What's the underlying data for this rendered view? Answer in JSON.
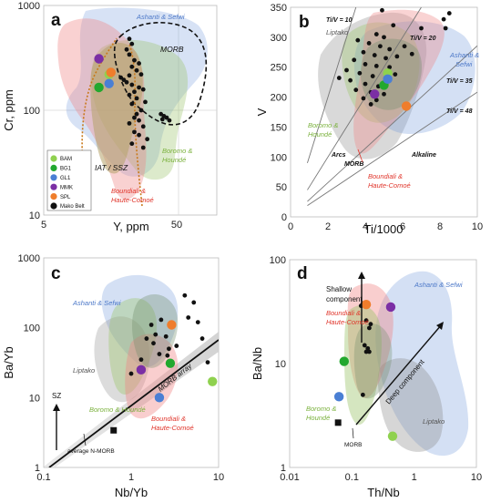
{
  "colors": {
    "BAM": "#8fd14f",
    "BG1": "#22a82e",
    "GL1": "#4a7fd4",
    "MMK": "#7b2fa5",
    "SPL": "#ef7d2c",
    "Mako": "#111111",
    "red": "#e0352b",
    "green": "#7ab13c",
    "blue": "#4c78c8",
    "gray": "#333333",
    "orangeDotted": "#c8781a"
  },
  "chart_data": [
    {
      "panel": "a",
      "type": "scatter",
      "xlabel": "Y, ppm",
      "ylabel": "Cr, ppm",
      "xscale": "log",
      "yscale": "log",
      "xlim": [
        5,
        100
      ],
      "ylim": [
        10,
        1000
      ],
      "xticks": [
        "5",
        "50"
      ],
      "yticks": [
        "10",
        "100",
        "1000"
      ],
      "fields": {
        "ashanti": "Ashanti & Sefwi",
        "morb": "MORB",
        "boromo": "Boromo & Houndé",
        "iat": "IAT / SSZ",
        "boundiali": "Boundiali & Haute-Comoé"
      },
      "legend": [
        "BAM",
        "BG1",
        "GL1",
        "MMK",
        "SPL",
        "Mako Belt"
      ],
      "samples": [
        {
          "g": "BAM",
          "x": 15.5,
          "y": 220
        },
        {
          "g": "BG1",
          "x": 13,
          "y": 165
        },
        {
          "g": "GL1",
          "x": 15.5,
          "y": 180
        },
        {
          "g": "MMK",
          "x": 13,
          "y": 310
        },
        {
          "g": "SPL",
          "x": 16,
          "y": 230
        }
      ],
      "mako": [
        [
          22,
          480
        ],
        [
          23,
          430
        ],
        [
          21,
          380
        ],
        [
          22,
          340
        ],
        [
          24,
          300
        ],
        [
          26,
          280
        ],
        [
          23,
          260
        ],
        [
          25,
          240
        ],
        [
          27,
          220
        ],
        [
          22,
          215
        ],
        [
          19,
          205
        ],
        [
          20,
          195
        ],
        [
          21,
          185
        ],
        [
          23,
          175
        ],
        [
          26,
          165
        ],
        [
          28,
          158
        ],
        [
          24,
          150
        ],
        [
          22,
          140
        ],
        [
          25,
          130
        ],
        [
          29,
          120
        ],
        [
          23,
          115
        ],
        [
          27,
          100
        ],
        [
          25,
          92
        ],
        [
          38,
          92
        ],
        [
          40,
          88
        ],
        [
          42,
          85
        ],
        [
          39,
          82
        ],
        [
          44,
          80
        ],
        [
          24,
          85
        ],
        [
          26,
          80
        ],
        [
          22,
          75
        ],
        [
          28,
          70
        ],
        [
          24,
          62
        ],
        [
          26,
          58
        ],
        [
          30,
          53
        ],
        [
          23,
          48
        ],
        [
          28,
          44
        ]
      ]
    },
    {
      "panel": "b",
      "type": "scatter",
      "xlabel": "Ti/1000",
      "ylabel": "V",
      "xlim": [
        0,
        10
      ],
      "ylim": [
        0,
        350
      ],
      "xticks": [
        "0",
        "2",
        "4",
        "6",
        "8",
        "10"
      ],
      "yticks": [
        "0",
        "50",
        "100",
        "150",
        "200",
        "250",
        "300",
        "350"
      ],
      "ratioLabels": {
        "r10": "Ti/V = 10",
        "r20": "Ti/V = 20",
        "r35": "Ti/V = 35",
        "r48": "Ti/V = 48"
      },
      "fields": {
        "liptako": "Liptako",
        "ashanti": "Ashanti & Sefwi",
        "boromo": "Boromo & Houndé",
        "arcs": "Arcs",
        "morb": "MORB",
        "alkaline": "Alkaline",
        "boundiali": "Boundiali & Haute-Comoé"
      },
      "samples": [
        {
          "g": "BAM",
          "x": 5.2,
          "y": 240
        },
        {
          "g": "BG1",
          "x": 5.0,
          "y": 220
        },
        {
          "g": "GL1",
          "x": 5.2,
          "y": 230
        },
        {
          "g": "MMK",
          "x": 4.5,
          "y": 205
        },
        {
          "g": "SPL",
          "x": 6.2,
          "y": 185
        }
      ],
      "mako": [
        [
          4.9,
          345
        ],
        [
          8.5,
          340
        ],
        [
          8.2,
          330
        ],
        [
          7.0,
          315
        ],
        [
          5.5,
          320
        ],
        [
          4.6,
          305
        ],
        [
          5.0,
          300
        ],
        [
          3.6,
          295
        ],
        [
          4.2,
          290
        ],
        [
          4.8,
          285
        ],
        [
          5.3,
          280
        ],
        [
          6.1,
          285
        ],
        [
          3.9,
          275
        ],
        [
          4.5,
          270
        ],
        [
          5.1,
          265
        ],
        [
          5.7,
          268
        ],
        [
          6.5,
          272
        ],
        [
          3.4,
          262
        ],
        [
          4.0,
          255
        ],
        [
          4.6,
          252
        ],
        [
          5.3,
          250
        ],
        [
          3.0,
          245
        ],
        [
          3.7,
          240
        ],
        [
          4.4,
          235
        ],
        [
          5.6,
          238
        ],
        [
          3.2,
          228
        ],
        [
          4.0,
          222
        ],
        [
          4.7,
          218
        ],
        [
          3.5,
          212
        ],
        [
          4.3,
          208
        ],
        [
          5.0,
          205
        ],
        [
          3.9,
          198
        ],
        [
          4.6,
          195
        ],
        [
          2.6,
          232
        ],
        [
          4.3,
          188
        ],
        [
          8.3,
          315
        ]
      ]
    },
    {
      "panel": "c",
      "type": "scatter",
      "xlabel": "Nb/Yb",
      "ylabel": "Ba/Yb",
      "xscale": "log",
      "yscale": "log",
      "xlim": [
        0.1,
        10
      ],
      "ylim": [
        1,
        1000
      ],
      "xticks": [
        "0.1",
        "1",
        "10"
      ],
      "yticks": [
        "1",
        "10",
        "100",
        "1000"
      ],
      "fields": {
        "ashanti": "Ashanti & Sefwi",
        "liptako": "Liptako",
        "boromo": "Boromo & Houndé",
        "boundiali": "Boundiali & Haute-Comoé",
        "morbArray": "MORB array",
        "sz": "SZ",
        "nmorb": "average N-MORB"
      },
      "samples": [
        {
          "g": "BAM",
          "x": 8.5,
          "y": 17
        },
        {
          "g": "BG1",
          "x": 2.8,
          "y": 31
        },
        {
          "g": "GL1",
          "x": 2.1,
          "y": 10
        },
        {
          "g": "MMK",
          "x": 1.3,
          "y": 25
        },
        {
          "g": "SPL",
          "x": 2.9,
          "y": 110
        }
      ],
      "mako": [
        [
          4.1,
          290
        ],
        [
          5.2,
          230
        ],
        [
          4.5,
          140
        ],
        [
          5.8,
          120
        ],
        [
          2.2,
          130
        ],
        [
          1.7,
          110
        ],
        [
          1.9,
          80
        ],
        [
          1.5,
          70
        ],
        [
          2.5,
          75
        ],
        [
          1.8,
          60
        ],
        [
          2.7,
          50
        ],
        [
          3.3,
          55
        ],
        [
          2.1,
          42
        ],
        [
          1.3,
          35
        ],
        [
          1.0,
          22
        ],
        [
          2.6,
          40
        ],
        [
          6.5,
          70
        ],
        [
          7.5,
          32
        ]
      ],
      "nmorb_point": {
        "x": 0.63,
        "y": 3.4
      }
    },
    {
      "panel": "d",
      "type": "scatter",
      "xlabel": "Th/Nb",
      "ylabel": "Ba/Nb",
      "xscale": "log",
      "yscale": "log",
      "xlim": [
        0.01,
        10
      ],
      "ylim": [
        1,
        100
      ],
      "xticks": [
        "0.01",
        "0.1",
        "1",
        "10"
      ],
      "yticks": [
        "1",
        "10",
        "100"
      ],
      "fields": {
        "ashanti": "Ashanti & Sefwi",
        "boundiali": "Boundiali & Haute-Comoé",
        "boromo": "Boromo & Houndé",
        "liptako": "Liptako",
        "shallow": "Shallow component",
        "deep": "Deep component",
        "morb": "MORB"
      },
      "samples": [
        {
          "g": "BAM",
          "x": 0.45,
          "y": 2.0
        },
        {
          "g": "BG1",
          "x": 0.075,
          "y": 10.5
        },
        {
          "g": "GL1",
          "x": 0.062,
          "y": 4.8
        },
        {
          "g": "MMK",
          "x": 0.42,
          "y": 35
        },
        {
          "g": "SPL",
          "x": 0.17,
          "y": 37
        }
      ],
      "mako": [
        [
          0.15,
          38
        ],
        [
          0.14,
          36
        ],
        [
          0.17,
          26
        ],
        [
          0.2,
          24
        ],
        [
          0.19,
          22
        ],
        [
          0.16,
          15
        ],
        [
          0.18,
          14
        ],
        [
          0.19,
          13
        ],
        [
          0.17,
          13
        ],
        [
          0.15,
          5
        ]
      ],
      "morb_point": {
        "x": 0.06,
        "y": 2.7
      }
    }
  ]
}
